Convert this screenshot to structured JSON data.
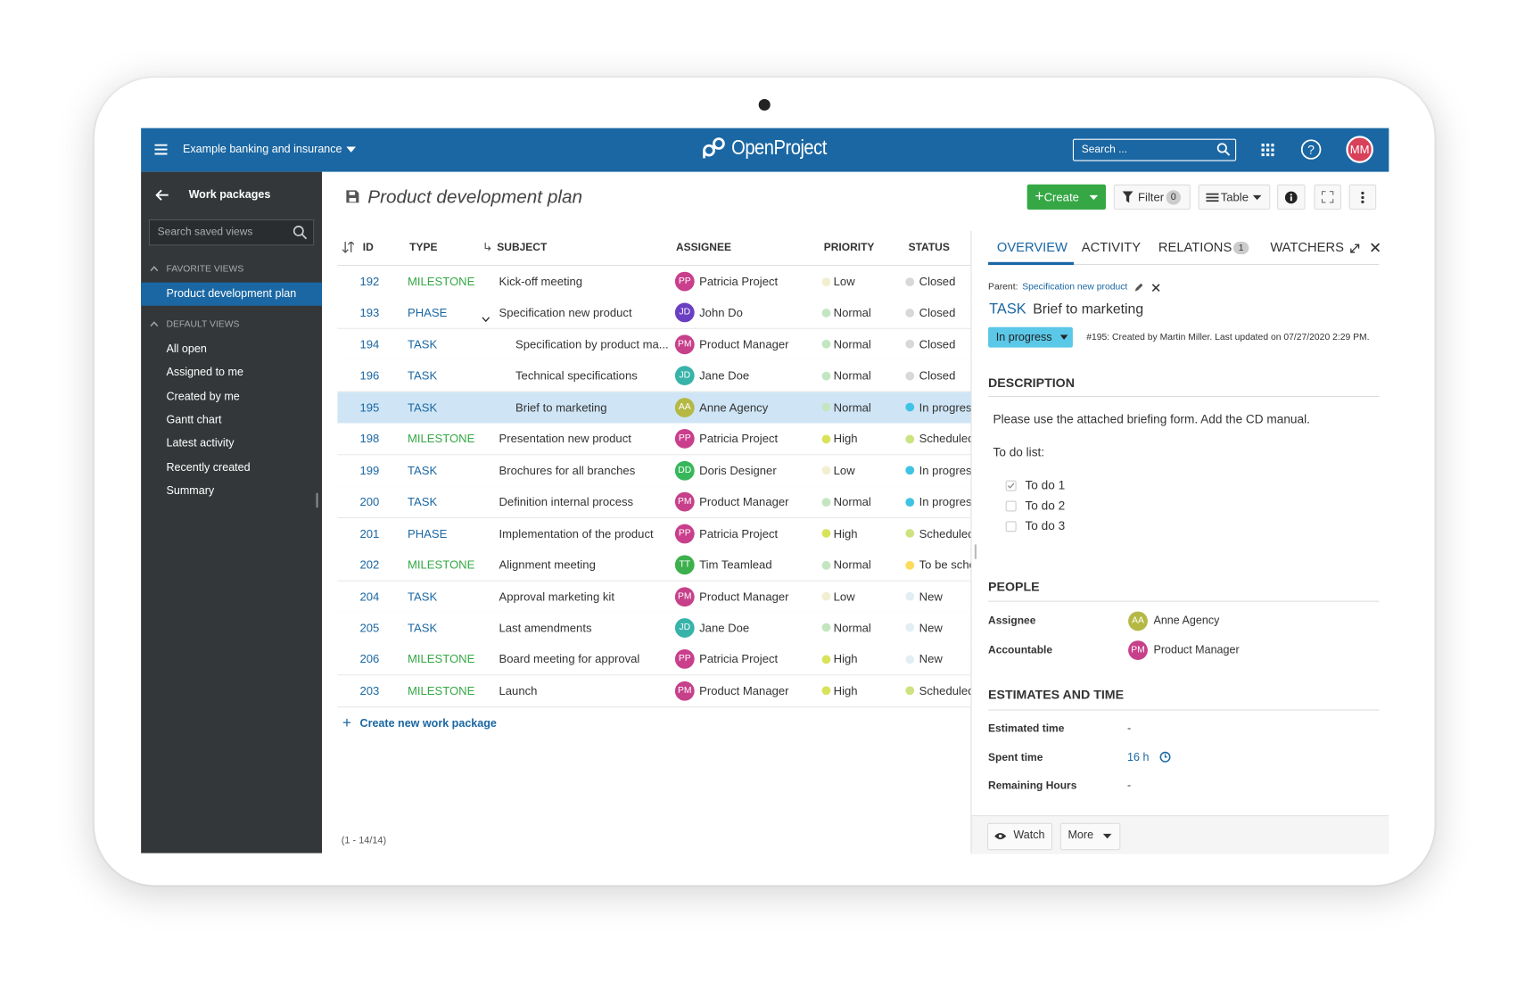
{
  "header": {
    "project": "Example banking and insurance",
    "logo": "OpenProject",
    "search_placeholder": "Search ...",
    "user_initials": "MM"
  },
  "sidebar": {
    "title": "Work packages",
    "search_placeholder": "Search saved views",
    "favorite_heading": "FAVORITE VIEWS",
    "favorites": [
      "Product development plan"
    ],
    "default_heading": "DEFAULT VIEWS",
    "defaults": [
      "All open",
      "Assigned to me",
      "Created by me",
      "Gantt chart",
      "Latest activity",
      "Recently created",
      "Summary"
    ]
  },
  "toolbar": {
    "title": "Product development plan",
    "create": "Create",
    "filter": "Filter",
    "filter_count": 0,
    "view": "Table"
  },
  "table": {
    "columns": [
      "ID",
      "TYPE",
      "SUBJECT",
      "ASSIGNEE",
      "PRIORITY",
      "STATUS"
    ],
    "rows": [
      {
        "id": 192,
        "type": "MILESTONE",
        "type_color": "#35a845",
        "subject": "Kick-off meeting",
        "indent": 0,
        "assignee": {
          "initials": "PP",
          "name": "Patricia Project",
          "color": "#c93f8c"
        },
        "priority": "Low",
        "priority_color": "#f1efcf",
        "status": "Closed",
        "status_color": "#d8d8d8"
      },
      {
        "id": 193,
        "type": "PHASE",
        "type_color": "#1a67a3",
        "subject": "Specification new product",
        "indent": 0,
        "expanded": true,
        "assignee": {
          "initials": "JD",
          "name": "John Do",
          "color": "#6a3fc2"
        },
        "priority": "Normal",
        "priority_color": "#c3e6c0",
        "status": "Closed",
        "status_color": "#d8d8d8"
      },
      {
        "id": 194,
        "type": "TASK",
        "type_color": "#1a67a3",
        "subject": "Specification by product ma...",
        "indent": 1,
        "assignee": {
          "initials": "PM",
          "name": "Product Manager",
          "color": "#c7408a"
        },
        "priority": "Normal",
        "priority_color": "#c3e6c0",
        "status": "Closed",
        "status_color": "#d8d8d8"
      },
      {
        "id": 196,
        "type": "TASK",
        "type_color": "#1a67a3",
        "subject": "Technical specifications",
        "indent": 1,
        "assignee": {
          "initials": "JD",
          "name": "Jane Doe",
          "color": "#38b3aa"
        },
        "priority": "Normal",
        "priority_color": "#c3e6c0",
        "status": "Closed",
        "status_color": "#d8d8d8"
      },
      {
        "id": 195,
        "type": "TASK",
        "type_color": "#1a67a3",
        "subject": "Brief to marketing",
        "indent": 1,
        "selected": true,
        "assignee": {
          "initials": "AA",
          "name": "Anne Agency",
          "color": "#b5b843"
        },
        "priority": "Normal",
        "priority_color": "#c3e6c0",
        "status": "In progress",
        "status_color": "#3fc3e4"
      },
      {
        "id": 198,
        "type": "MILESTONE",
        "type_color": "#35a845",
        "subject": "Presentation new product",
        "indent": 0,
        "assignee": {
          "initials": "PP",
          "name": "Patricia Project",
          "color": "#c93f8c"
        },
        "priority": "High",
        "priority_color": "#d9e35a",
        "status": "Scheduled",
        "status_color": "#cde382"
      },
      {
        "id": 199,
        "type": "TASK",
        "type_color": "#1a67a3",
        "subject": "Brochures for all branches",
        "indent": 0,
        "assignee": {
          "initials": "DD",
          "name": "Doris Designer",
          "color": "#36b85a"
        },
        "priority": "Low",
        "priority_color": "#f1efcf",
        "status": "In progress",
        "status_color": "#3fc3e4"
      },
      {
        "id": 200,
        "type": "TASK",
        "type_color": "#1a67a3",
        "subject": "Definition internal process",
        "indent": 0,
        "assignee": {
          "initials": "PM",
          "name": "Product Manager",
          "color": "#c7408a"
        },
        "priority": "Normal",
        "priority_color": "#c3e6c0",
        "status": "In progress",
        "status_color": "#3fc3e4"
      },
      {
        "id": 201,
        "type": "PHASE",
        "type_color": "#1a67a3",
        "subject": "Implementation of the product",
        "indent": 0,
        "assignee": {
          "initials": "PP",
          "name": "Patricia Project",
          "color": "#c93f8c"
        },
        "priority": "High",
        "priority_color": "#d9e35a",
        "status": "Scheduled",
        "status_color": "#cde382"
      },
      {
        "id": 202,
        "type": "MILESTONE",
        "type_color": "#35a845",
        "subject": "Alignment meeting",
        "indent": 0,
        "assignee": {
          "initials": "TT",
          "name": "Tim Teamlead",
          "color": "#3cb04c"
        },
        "priority": "Normal",
        "priority_color": "#c3e6c0",
        "status": "To be scheduled",
        "status_color": "#ffdb5c"
      },
      {
        "id": 204,
        "type": "TASK",
        "type_color": "#1a67a3",
        "subject": "Approval marketing kit",
        "indent": 0,
        "assignee": {
          "initials": "PM",
          "name": "Product Manager",
          "color": "#c7408a"
        },
        "priority": "Low",
        "priority_color": "#f1efcf",
        "status": "New",
        "status_color": "#e3edf4"
      },
      {
        "id": 205,
        "type": "TASK",
        "type_color": "#1a67a3",
        "subject": "Last amendments",
        "indent": 0,
        "assignee": {
          "initials": "JD",
          "name": "Jane Doe",
          "color": "#38b3aa"
        },
        "priority": "Normal",
        "priority_color": "#c3e6c0",
        "status": "New",
        "status_color": "#e3edf4"
      },
      {
        "id": 206,
        "type": "MILESTONE",
        "type_color": "#35a845",
        "subject": "Board meeting for approval",
        "indent": 0,
        "assignee": {
          "initials": "PP",
          "name": "Patricia Project",
          "color": "#c93f8c"
        },
        "priority": "High",
        "priority_color": "#d9e35a",
        "status": "New",
        "status_color": "#e3edf4"
      },
      {
        "id": 203,
        "type": "MILESTONE",
        "type_color": "#35a845",
        "subject": "Launch",
        "indent": 0,
        "assignee": {
          "initials": "PM",
          "name": "Product Manager",
          "color": "#c7408a"
        },
        "priority": "High",
        "priority_color": "#d9e35a",
        "status": "Scheduled",
        "status_color": "#cde382"
      }
    ],
    "create_link": "Create new work package",
    "pagination": "(1 - 14/14)"
  },
  "details": {
    "tabs": [
      "OVERVIEW",
      "ACTIVITY",
      "RELATIONS",
      "WATCHERS"
    ],
    "relations_count": 1,
    "parent_label": "Parent:",
    "parent": "Specification new product",
    "type": "TASK",
    "subject": "Brief to marketing",
    "status": "In progress",
    "meta": "#195: Created by Martin Miller. Last updated on 07/27/2020 2:29 PM.",
    "description_heading": "DESCRIPTION",
    "description": "Please use the attached briefing form. Add the CD manual.",
    "todo_heading": "To do list:",
    "todos": [
      {
        "text": "To do 1",
        "checked": true
      },
      {
        "text": "To do 2",
        "checked": false
      },
      {
        "text": "To do 3",
        "checked": false
      }
    ],
    "people_heading": "PEOPLE",
    "people": [
      {
        "label": "Assignee",
        "initials": "AA",
        "name": "Anne Agency",
        "color": "#b5b843"
      },
      {
        "label": "Accountable",
        "initials": "PM",
        "name": "Product Manager",
        "color": "#c7408a"
      }
    ],
    "estimates_heading": "ESTIMATES AND TIME",
    "estimates": [
      {
        "label": "Estimated time",
        "value": "-"
      },
      {
        "label": "Spent time",
        "value": "16 h"
      },
      {
        "label": "Remaining Hours",
        "value": "-"
      }
    ],
    "watch": "Watch",
    "more": "More"
  }
}
